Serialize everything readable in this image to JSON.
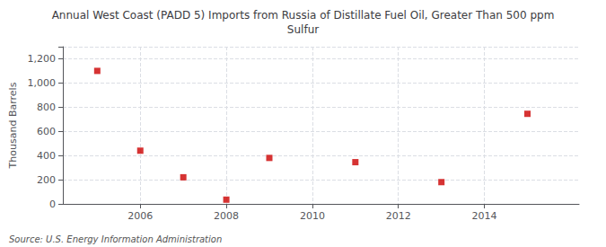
{
  "chart_data": {
    "type": "scatter",
    "title": "Annual West Coast (PADD 5) Imports from Russia of Distillate Fuel Oil, Greater Than 500 ppm\nSulfur",
    "ylabel": "Thousand Barrels",
    "annotation": "Source: U.S. Energy Information Administration",
    "x": [
      2005,
      2006,
      2007,
      2008,
      2009,
      2011,
      2013,
      2015
    ],
    "values": [
      1100,
      440,
      220,
      35,
      380,
      345,
      180,
      745
    ],
    "color": "#cc0000",
    "marker": "square",
    "xlim": [
      2004.2,
      2016.2
    ],
    "xticks": [
      2006,
      2008,
      2010,
      2012,
      2014
    ],
    "ylim": [
      0,
      1300
    ],
    "yticks": [
      0,
      200,
      400,
      600,
      800,
      {
        "value": 1000,
        "label": "1,000"
      },
      {
        "value": 1200,
        "label": "1,200"
      }
    ],
    "grid": true
  }
}
